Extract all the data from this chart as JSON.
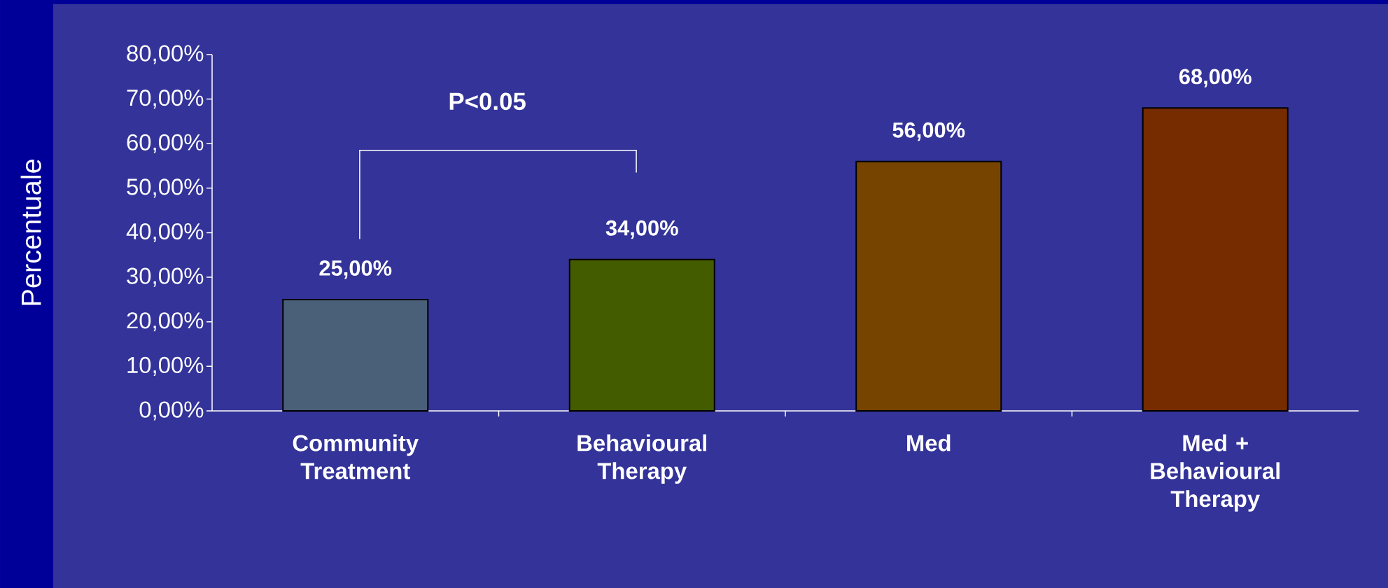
{
  "chart_data": {
    "type": "bar",
    "ylabel": "Percentuale",
    "categories": [
      "Community Treatment",
      "Behavioural Therapy",
      "Med",
      "Med + Behavioural Therapy"
    ],
    "values": [
      25,
      34,
      56,
      68
    ],
    "colors": [
      "#4a6078",
      "#445c00",
      "#774400",
      "#772c00"
    ],
    "value_labels": [
      "25,00%",
      "34,00%",
      "56,00%",
      "68,00%"
    ],
    "ylim": [
      0,
      80
    ],
    "yticks": [
      {
        "value": 0,
        "label": "0,00%"
      },
      {
        "value": 10,
        "label": "10,00%"
      },
      {
        "value": 20,
        "label": "20,00%"
      },
      {
        "value": 30,
        "label": "30,00%"
      },
      {
        "value": 40,
        "label": "40,00%"
      },
      {
        "value": 50,
        "label": "50,00%"
      },
      {
        "value": 60,
        "label": "60,00%"
      },
      {
        "value": 70,
        "label": "70,00%"
      },
      {
        "value": 80,
        "label": "80,00%"
      }
    ],
    "annotations": [
      "P<0.05"
    ]
  }
}
